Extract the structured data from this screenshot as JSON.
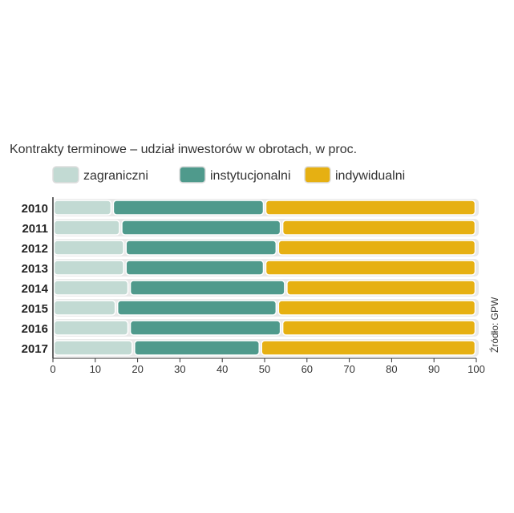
{
  "chart_data": {
    "type": "bar",
    "orientation": "horizontal",
    "stacked": true,
    "title": "Kontrakty terminowe – udział inwestorów w obrotach, w proc.",
    "source": "Źródło: GPW",
    "categories": [
      "2010",
      "2011",
      "2012",
      "2013",
      "2014",
      "2015",
      "2016",
      "2017"
    ],
    "series": [
      {
        "name": "zagraniczni",
        "color": "#c2dad3",
        "values": [
          14,
          16,
          17,
          17,
          18,
          15,
          18,
          19
        ]
      },
      {
        "name": "instytucjonalni",
        "color": "#4f9a8c",
        "values": [
          36,
          38,
          36,
          33,
          37,
          38,
          36,
          30
        ]
      },
      {
        "name": "indywidualni",
        "color": "#e6b012",
        "values": [
          50,
          46,
          47,
          50,
          45,
          47,
          46,
          51
        ]
      }
    ],
    "xlim": [
      0,
      100
    ],
    "xticks": [
      "0",
      "10",
      "20",
      "30",
      "40",
      "50",
      "60",
      "70",
      "80",
      "90",
      "100"
    ],
    "legend": "top",
    "grid": false
  }
}
